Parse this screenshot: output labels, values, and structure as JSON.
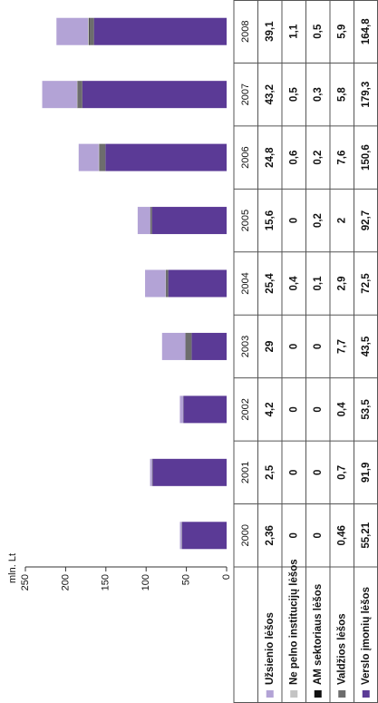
{
  "chart_data": {
    "type": "bar",
    "stacked": true,
    "y_label": "mln. Lt",
    "categories": [
      "2000",
      "2001",
      "2002",
      "2003",
      "2004",
      "2005",
      "2006",
      "2007",
      "2008"
    ],
    "ylim": [
      0,
      250
    ],
    "yticks": [
      0,
      50,
      100,
      150,
      200,
      250
    ],
    "series": [
      {
        "name": "Verslo įmonių lėšos",
        "color": "#5b3a96",
        "values": [
          55.21,
          91.9,
          53.5,
          43.5,
          72.5,
          92.7,
          150.6,
          179.3,
          164.8
        ],
        "value_labels": [
          "55,21",
          "91,9",
          "53,5",
          "43,5",
          "72,5",
          "92,7",
          "150,6",
          "179,3",
          "164,8"
        ]
      },
      {
        "name": "Valdžios lėšos",
        "color": "#6d6d6d",
        "values": [
          0.46,
          0.7,
          0.4,
          7.7,
          2.9,
          2,
          7.6,
          5.8,
          5.9
        ],
        "value_labels": [
          "0,46",
          "0,7",
          "0,4",
          "7,7",
          "2,9",
          "2",
          "7,6",
          "5,8",
          "5,9"
        ]
      },
      {
        "name": "AM sektoriaus lėšos",
        "color": "#111111",
        "values": [
          0,
          0,
          0,
          0,
          0.1,
          0.2,
          0.2,
          0.3,
          0.5
        ],
        "value_labels": [
          "0",
          "0",
          "0",
          "0",
          "0,1",
          "0,2",
          "0,2",
          "0,3",
          "0,5"
        ]
      },
      {
        "name": "Ne pelno institucijų lėšos",
        "color": "#c4c4c4",
        "values": [
          0,
          0,
          0,
          0,
          0.4,
          0,
          0.6,
          0.5,
          1.1
        ],
        "value_labels": [
          "0",
          "0",
          "0",
          "0",
          "0,4",
          "0",
          "0,6",
          "0,5",
          "1,1"
        ]
      },
      {
        "name": "Užsienio lėšos",
        "color": "#b3a3d6",
        "values": [
          2.36,
          2.5,
          4.2,
          29,
          25.4,
          15.6,
          24.8,
          43.2,
          39.1
        ],
        "value_labels": [
          "2,36",
          "2,5",
          "4,2",
          "29",
          "25,4",
          "15,6",
          "24,8",
          "43,2",
          "39,1"
        ]
      }
    ]
  }
}
